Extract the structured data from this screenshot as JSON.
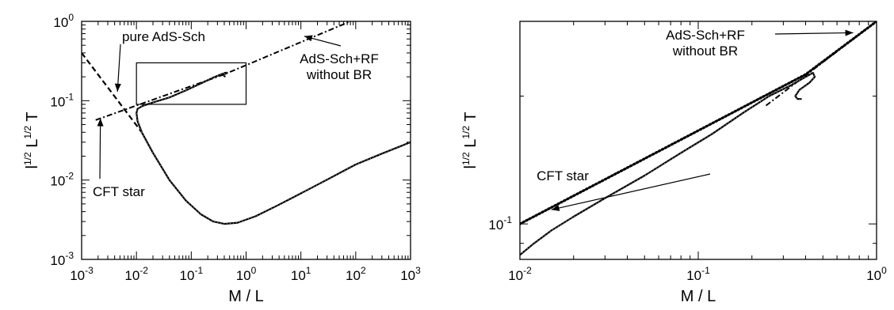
{
  "chart_data": [
    {
      "type": "line",
      "title": "",
      "xlabel": "M / L",
      "ylabel": "l^{1/2} L^{1/2} T",
      "xscale": "log",
      "yscale": "log",
      "xlim": [
        0.001,
        1000
      ],
      "ylim": [
        0.001,
        1
      ],
      "xticks": [
        {
          "base": "10",
          "exp": "-3"
        },
        {
          "base": "10",
          "exp": "-2"
        },
        {
          "base": "10",
          "exp": "-1"
        },
        {
          "base": "10",
          "exp": "0"
        },
        {
          "base": "10",
          "exp": "1"
        },
        {
          "base": "10",
          "exp": "2"
        },
        {
          "base": "10",
          "exp": "3"
        }
      ],
      "yticks": [
        {
          "base": "10",
          "exp": "-3"
        },
        {
          "base": "10",
          "exp": "-2"
        },
        {
          "base": "10",
          "exp": "-1"
        },
        {
          "base": "10",
          "exp": "0"
        }
      ],
      "series": [
        {
          "style": "dashed",
          "x": [
            0.001,
            0.0125
          ],
          "y": [
            0.4,
            0.04
          ]
        },
        {
          "style": "dash-dot",
          "x": [
            0.0018,
            0.4,
            80
          ],
          "y": [
            0.057,
            0.215,
            1.0
          ]
        },
        {
          "style": "solid",
          "x": [
            0.0125,
            0.0105,
            0.01,
            0.0105,
            0.013,
            0.02,
            0.04,
            0.08,
            0.15,
            0.25,
            0.35,
            0.42,
            0.45,
            0.4,
            0.38,
            0.4,
            0.42
          ],
          "y": [
            0.04,
            0.055,
            0.07,
            0.079,
            0.086,
            0.095,
            0.11,
            0.135,
            0.165,
            0.195,
            0.215,
            0.225,
            0.225,
            0.215,
            0.21,
            0.205,
            0.2
          ]
        },
        {
          "style": "solid",
          "x": [
            0.0125,
            0.02,
            0.04,
            0.08,
            0.15,
            0.25,
            0.4,
            0.7,
            1.5,
            4,
            10,
            30,
            100,
            300,
            1000
          ],
          "y": [
            0.04,
            0.022,
            0.01,
            0.0055,
            0.0037,
            0.003,
            0.0028,
            0.0029,
            0.0035,
            0.0049,
            0.0068,
            0.0101,
            0.0157,
            0.0215,
            0.03
          ]
        }
      ],
      "inset_box": {
        "x": [
          0.01,
          1.0
        ],
        "y": [
          0.09,
          0.3
        ]
      },
      "annotations": [
        {
          "text": "pure AdS-Sch",
          "arrow_to": {
            "x": 0.0045,
            "y": 0.13
          }
        },
        {
          "lines": [
            "AdS-Sch+RF",
            "without BR"
          ],
          "arrow_to": {
            "x": 11.5,
            "y": 0.65
          }
        },
        {
          "text": "CFT star",
          "arrow_to": {
            "x": 0.0022,
            "y": 0.06
          }
        }
      ]
    },
    {
      "type": "line",
      "title": "",
      "xlabel": "M / L",
      "ylabel": "l^{1/2} L^{1/2} T",
      "xscale": "log",
      "yscale": "log",
      "xlim": [
        0.01,
        1
      ],
      "ylim": [
        0.0825,
        0.3
      ],
      "xticks": [
        {
          "base": "10",
          "exp": "-2"
        },
        {
          "base": "10",
          "exp": "-1"
        },
        {
          "base": "10",
          "exp": "0"
        }
      ],
      "yticks": [
        {
          "base": "10",
          "exp": "-1"
        }
      ],
      "series": [
        {
          "style": "dotted",
          "x": [
            0.01,
            0.4,
            1.0
          ],
          "y": [
            0.1,
            0.225,
            0.3
          ]
        },
        {
          "style": "dash-dot",
          "x": [
            0.24,
            1.0
          ],
          "y": [
            0.19,
            0.3
          ]
        },
        {
          "style": "solid",
          "x": [
            0.01,
            0.012,
            0.015,
            0.02,
            0.03,
            0.05,
            0.08,
            0.12,
            0.18,
            0.25,
            0.33,
            0.4,
            0.44,
            0.45,
            0.42,
            0.37,
            0.35,
            0.36,
            0.38
          ],
          "y": [
            0.0845,
            0.09,
            0.0965,
            0.104,
            0.115,
            0.13,
            0.147,
            0.163,
            0.183,
            0.2,
            0.212,
            0.222,
            0.227,
            0.222,
            0.215,
            0.207,
            0.2,
            0.197,
            0.197
          ]
        }
      ],
      "annotations": [
        {
          "text": "CFT star",
          "arrow_to": {
            "x": 0.015,
            "y": 0.108
          }
        },
        {
          "lines": [
            "AdS-Sch+RF",
            "without BR"
          ],
          "arrow_to": {
            "x": 0.74,
            "y": 0.282
          }
        }
      ]
    }
  ]
}
